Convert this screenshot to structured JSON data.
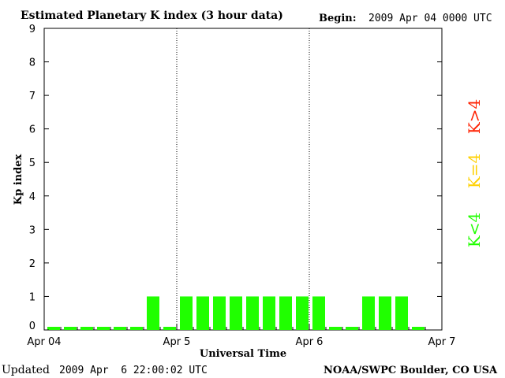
{
  "header": {
    "title": "Estimated Planetary K index (3 hour data)",
    "begin_label": "Begin:",
    "begin_value": "2009 Apr 04 0000 UTC"
  },
  "footer": {
    "updated_label": "Updated",
    "updated_value": "2009 Apr  6 22:00:02 UTC",
    "source": "NOAA/SWPC Boulder, CO USA"
  },
  "legend": {
    "above": {
      "label": "K>4",
      "color": "#ff2000"
    },
    "equal": {
      "label": "K=4",
      "color": "#ffd000"
    },
    "below": {
      "label": "K<4",
      "color": "#20ff00"
    }
  },
  "chart_data": {
    "type": "bar",
    "title": "Estimated Planetary K index (3 hour data)",
    "xlabel": "Universal Time",
    "ylabel": "Kp index",
    "ylim": [
      0,
      9
    ],
    "yticks": [
      0,
      1,
      2,
      3,
      4,
      5,
      6,
      7,
      8,
      9
    ],
    "x_tick_labels": [
      "Apr 04",
      "Apr 5",
      "Apr 6",
      "Apr 7"
    ],
    "bins_per_day": 8,
    "day_count": 3,
    "values": [
      0,
      0,
      0,
      0,
      0,
      0,
      1,
      0,
      1,
      1,
      1,
      1,
      1,
      1,
      1,
      1,
      1,
      0,
      0,
      1,
      1,
      1,
      0
    ],
    "bar_color": "#20ff00"
  }
}
